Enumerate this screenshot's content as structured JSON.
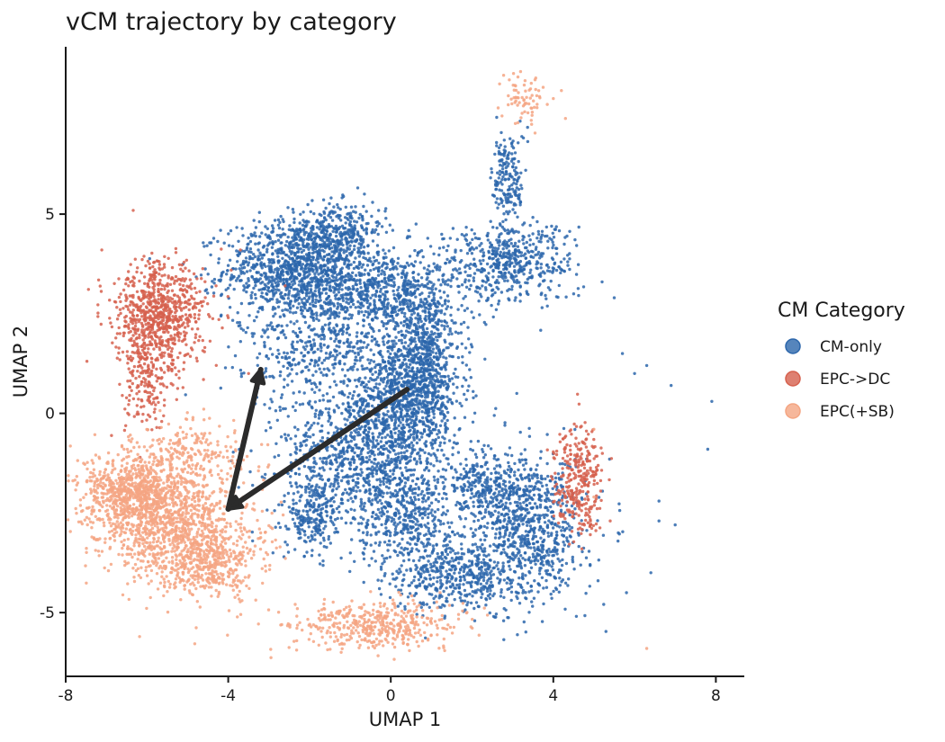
{
  "chart_data": {
    "type": "scatter",
    "title": "vCM trajectory by category",
    "xlabel": "UMAP 1",
    "ylabel": "UMAP 2",
    "xlim": [
      -8,
      8.7
    ],
    "ylim": [
      -6.6,
      9.2
    ],
    "x_ticks": [
      -8,
      -4,
      0,
      4,
      8
    ],
    "x_tick_labels": [
      "-8",
      "-4",
      "0",
      "4",
      "8"
    ],
    "y_ticks": [
      -5,
      0,
      5
    ],
    "y_tick_labels": [
      "-5",
      "0",
      "5"
    ],
    "grid": false,
    "legend": {
      "title": "CM Category",
      "placement": "right"
    },
    "series": [
      {
        "name": "CM-only",
        "color": "#2c66ab",
        "clusters": [
          {
            "center": [
              -2.3,
              3.6
            ],
            "spread": [
              0.9,
              0.6
            ],
            "count": 1100
          },
          {
            "center": [
              -1.3,
              4.6
            ],
            "spread": [
              0.6,
              0.35
            ],
            "count": 300
          },
          {
            "center": [
              -0.1,
              3.0
            ],
            "spread": [
              0.9,
              0.6
            ],
            "count": 700
          },
          {
            "center": [
              0.8,
              1.2
            ],
            "spread": [
              0.5,
              0.9
            ],
            "count": 700
          },
          {
            "center": [
              0.2,
              0.2
            ],
            "spread": [
              0.7,
              0.8
            ],
            "count": 700
          },
          {
            "center": [
              -1.8,
              1.5
            ],
            "spread": [
              0.9,
              0.7
            ],
            "count": 400
          },
          {
            "center": [
              -0.8,
              -1.2
            ],
            "spread": [
              1.0,
              0.9
            ],
            "count": 900
          },
          {
            "center": [
              -1.9,
              -2.6
            ],
            "spread": [
              0.3,
              0.5
            ],
            "count": 200
          },
          {
            "center": [
              0.4,
              -2.5
            ],
            "spread": [
              0.6,
              0.6
            ],
            "count": 350
          },
          {
            "center": [
              2.9,
              3.8
            ],
            "spread": [
              0.8,
              0.5
            ],
            "count": 500
          },
          {
            "center": [
              2.9,
              5.9
            ],
            "spread": [
              0.2,
              0.6
            ],
            "count": 180
          },
          {
            "center": [
              3.4,
              -2.9
            ],
            "spread": [
              0.7,
              0.9
            ],
            "count": 800
          },
          {
            "center": [
              1.6,
              -4.0
            ],
            "spread": [
              0.8,
              0.5
            ],
            "count": 500
          },
          {
            "center": [
              2.4,
              -1.8
            ],
            "spread": [
              0.6,
              0.4
            ],
            "count": 250
          }
        ],
        "outliers": [
          [
            5.7,
            1.5
          ],
          [
            6.3,
            1.2
          ],
          [
            6.9,
            0.7
          ],
          [
            7.9,
            0.3
          ],
          [
            7.8,
            -0.9
          ],
          [
            6.6,
            -2.7
          ],
          [
            7.0,
            -2.8
          ],
          [
            5.6,
            -3.0
          ],
          [
            6.4,
            -4.0
          ],
          [
            5.8,
            -4.5
          ],
          [
            4.5,
            3.0
          ],
          [
            5.2,
            3.3
          ],
          [
            5.5,
            2.9
          ],
          [
            6.0,
            1.0
          ],
          [
            6.6,
            -2.2
          ],
          [
            -3.4,
            -3.2
          ],
          [
            -2.9,
            -3.5
          ],
          [
            5.1,
            -4.2
          ]
        ]
      },
      {
        "name": "EPC->DC",
        "color": "#d6604d",
        "clusters": [
          {
            "center": [
              -5.7,
              2.4
            ],
            "spread": [
              0.55,
              0.7
            ],
            "count": 800
          },
          {
            "center": [
              -6.0,
              0.6
            ],
            "spread": [
              0.3,
              0.6
            ],
            "count": 150
          },
          {
            "center": [
              4.6,
              -1.4
            ],
            "spread": [
              0.3,
              0.6
            ],
            "count": 250
          },
          {
            "center": [
              4.7,
              -2.5
            ],
            "spread": [
              0.25,
              0.4
            ],
            "count": 60
          }
        ],
        "outliers": [
          [
            -4.0,
            2.4
          ],
          [
            -3.7,
            4.1
          ],
          [
            -4.3,
            3.2
          ],
          [
            5.4,
            -2.7
          ],
          [
            -3.5,
            1.0
          ],
          [
            -2.6,
            3.2
          ]
        ]
      },
      {
        "name": "EPC(+SB)",
        "color": "#f4a582",
        "clusters": [
          {
            "center": [
              -6.2,
              -2.0
            ],
            "spread": [
              0.7,
              0.5
            ],
            "count": 900
          },
          {
            "center": [
              -5.2,
              -3.0
            ],
            "spread": [
              0.9,
              0.7
            ],
            "count": 900
          },
          {
            "center": [
              -4.4,
              -3.8
            ],
            "spread": [
              0.6,
              0.4
            ],
            "count": 300
          },
          {
            "center": [
              -4.8,
              -1.0
            ],
            "spread": [
              0.7,
              0.4
            ],
            "count": 200
          },
          {
            "center": [
              -0.4,
              -5.3
            ],
            "spread": [
              1.0,
              0.3
            ],
            "count": 450
          },
          {
            "center": [
              3.3,
              7.9
            ],
            "spread": [
              0.25,
              0.35
            ],
            "count": 70
          }
        ],
        "outliers": [
          [
            4.2,
            8.1
          ],
          [
            4.3,
            7.4
          ],
          [
            -3.8,
            -1.4
          ],
          [
            -3.4,
            -2.4
          ],
          [
            -3.2,
            -3.0
          ],
          [
            5.0,
            -0.4
          ],
          [
            6.3,
            -5.9
          ],
          [
            -2.3,
            -4.9
          ],
          [
            5.0,
            -2.1
          ],
          [
            4.0,
            7.9
          ]
        ]
      }
    ],
    "arrows": [
      {
        "from": [
          0.4,
          0.6
        ],
        "to": [
          -4.0,
          -2.4
        ]
      },
      {
        "from": [
          -4.0,
          -2.4
        ],
        "to": [
          -3.2,
          1.1
        ]
      }
    ]
  }
}
